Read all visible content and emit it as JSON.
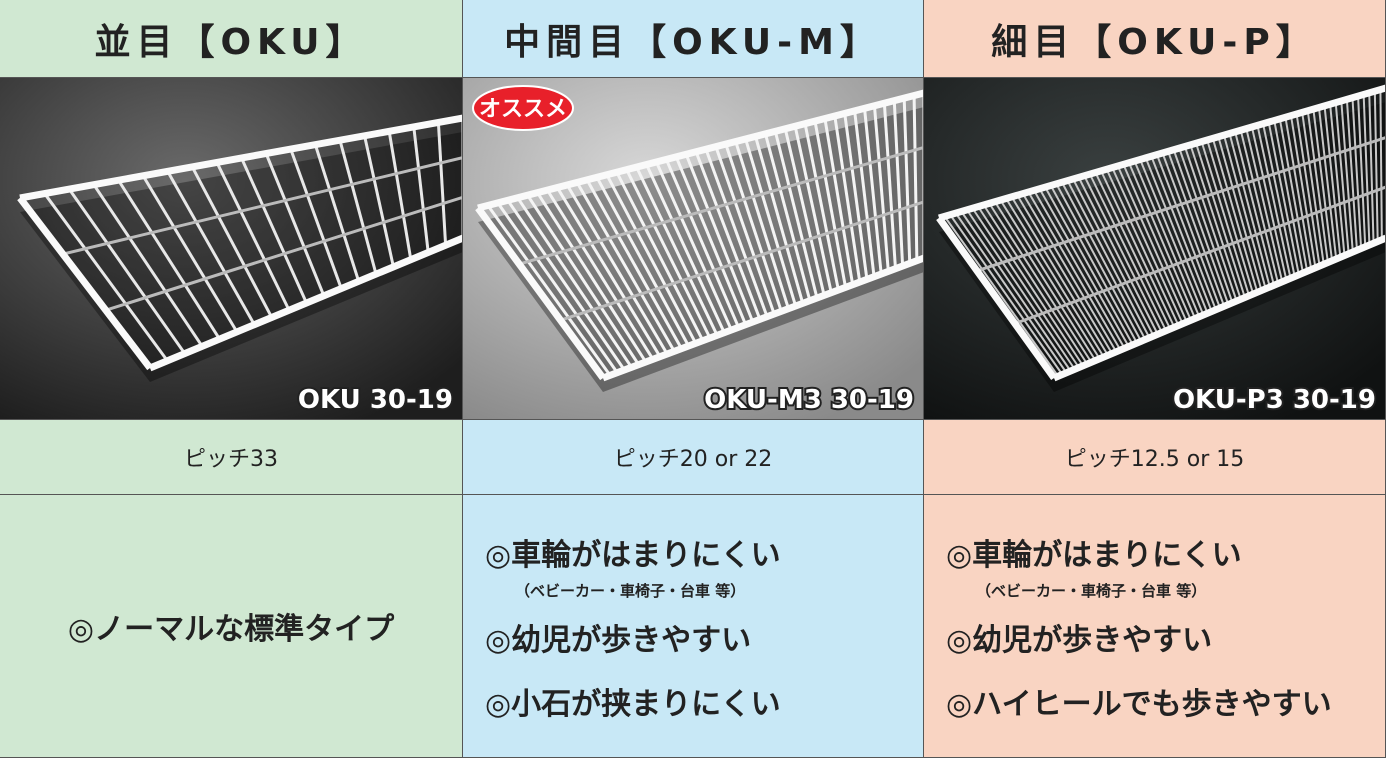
{
  "badge": "オススメ",
  "columns": [
    {
      "title": "並目【OKU】",
      "product": "OKU 30-19",
      "pitch": "ピッチ33",
      "features": [
        {
          "text": "◎ノーマルな標準タイプ"
        }
      ]
    },
    {
      "title": "中間目【OKU-M】",
      "product": "OKU-M3 30-19",
      "pitch": "ピッチ20 or 22",
      "features": [
        {
          "text": "◎車輪がはまりにくい",
          "note": "（ベビーカー・車椅子・台車 等）"
        },
        {
          "text": "◎幼児が歩きやすい"
        },
        {
          "text": "◎小石が挟まりにくい"
        }
      ]
    },
    {
      "title": "細目【OKU-P】",
      "product": "OKU-P3 30-19",
      "pitch": "ピッチ12.5 or 15",
      "features": [
        {
          "text": "◎車輪がはまりにくい",
          "note": "（ベビーカー・車椅子・台車 等）"
        },
        {
          "text": "◎幼児が歩きやすい"
        },
        {
          "text": "◎ハイヒールでも歩きやすい"
        }
      ]
    }
  ]
}
